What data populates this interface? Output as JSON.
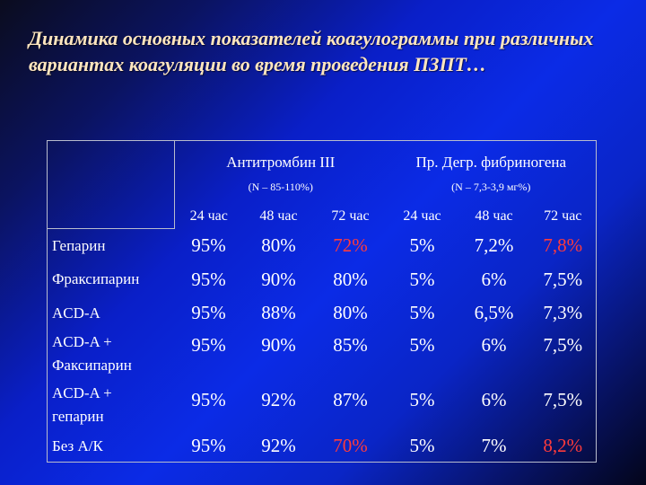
{
  "title": "Динамика основных показателей коагулограммы при различных вариантах коагуляции во время проведения ПЗПТ…",
  "headers": {
    "group1_title": "Антитромбин III",
    "group1_norm": "(N – 85-110%)",
    "group2_title": "Пр. Дегр. фибриногена",
    "group2_norm": "(N – 7,3-3,9 мг%)",
    "time_labels": [
      "24 час",
      "48 час",
      "72 час",
      "24 час",
      "48 час",
      "72 час"
    ]
  },
  "rows": [
    {
      "label_lines": [
        "Гепарин"
      ],
      "values": [
        "95%",
        "80%",
        "72%",
        "5%",
        "7,2%",
        "7,8%"
      ]
    },
    {
      "label_lines": [
        "Фраксипарин"
      ],
      "values": [
        "95%",
        "90%",
        "80%",
        "5%",
        "6%",
        "7,5%"
      ]
    },
    {
      "label_lines": [
        "ACD-A"
      ],
      "values": [
        "95%",
        "88%",
        "80%",
        "5%",
        "6,5%",
        "7,3%"
      ]
    },
    {
      "label_lines": [
        "ACD-A +",
        "Факсипарин"
      ],
      "values": [
        "95%",
        "90%",
        "85%",
        "5%",
        "6%",
        "7,5%"
      ]
    },
    {
      "label_lines": [
        "ACD-A +",
        "гепарин"
      ],
      "values": [
        "95%",
        "92%",
        "87%",
        "5%",
        "6%",
        "7,5%"
      ]
    },
    {
      "label_lines": [
        "Без А/К"
      ],
      "values": [
        "95%",
        "92%",
        "70%",
        "5%",
        "7%",
        "8,2%"
      ]
    }
  ],
  "highlight_color": "#ff3b3b",
  "highlighted_cells": [
    "0-2",
    "0-5",
    "5-2",
    "5-5"
  ]
}
